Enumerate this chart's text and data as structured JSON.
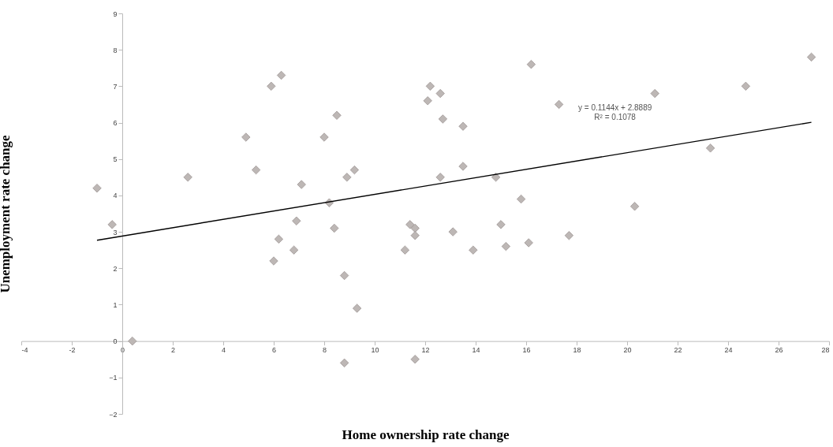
{
  "chart_data": {
    "type": "scatter",
    "xlabel": "Home ownership rate change",
    "ylabel": "Unemployment rate change",
    "xlim": [
      -4,
      28
    ],
    "ylim": [
      -2,
      9
    ],
    "xticks": [
      -4,
      -2,
      0,
      2,
      4,
      6,
      8,
      10,
      12,
      14,
      16,
      18,
      20,
      22,
      24,
      26,
      28
    ],
    "yticks": [
      -2,
      -1,
      0,
      1,
      2,
      3,
      4,
      5,
      6,
      7,
      8,
      9
    ],
    "series": [
      {
        "color": "#bdb7b5",
        "marker": "diamond",
        "x": [
          -1.0,
          -0.4,
          0.4,
          2.6,
          4.9,
          5.3,
          5.9,
          6.3,
          6.0,
          6.2,
          6.8,
          6.9,
          7.1,
          8.0,
          8.2,
          8.5,
          8.4,
          8.8,
          8.8,
          8.9,
          9.2,
          9.3,
          11.2,
          11.4,
          11.6,
          11.6,
          11.6,
          12.1,
          12.2,
          12.6,
          12.7,
          13.5,
          13.5,
          12.6,
          13.1,
          13.9,
          14.8,
          15.0,
          15.2,
          15.8,
          16.2,
          16.1,
          17.3,
          17.7,
          20.3,
          21.1,
          23.3,
          24.7,
          27.3
        ],
        "values": [
          4.2,
          3.2,
          0,
          4.5,
          5.6,
          4.7,
          7.0,
          7.3,
          2.2,
          2.8,
          2.5,
          3.3,
          4.3,
          5.6,
          3.8,
          6.2,
          3.1,
          1.8,
          -0.6,
          4.5,
          4.7,
          0.9,
          2.5,
          3.2,
          3.1,
          2.9,
          -0.5,
          6.6,
          7.0,
          6.8,
          6.1,
          5.9,
          4.8,
          4.5,
          3.0,
          2.5,
          4.5,
          3.2,
          2.6,
          3.9,
          7.6,
          2.7,
          6.5,
          2.9,
          3.7,
          6.8,
          5.3,
          7.0,
          7.8
        ]
      },
      {
        "type": "line",
        "marker": "none",
        "color": "#000000",
        "x": [
          -1.0,
          27.3
        ],
        "values": [
          2.77,
          6.01
        ]
      }
    ],
    "annotations": [
      "y = 0.1144x + 2.8889",
      "R² = 0.1078"
    ]
  }
}
